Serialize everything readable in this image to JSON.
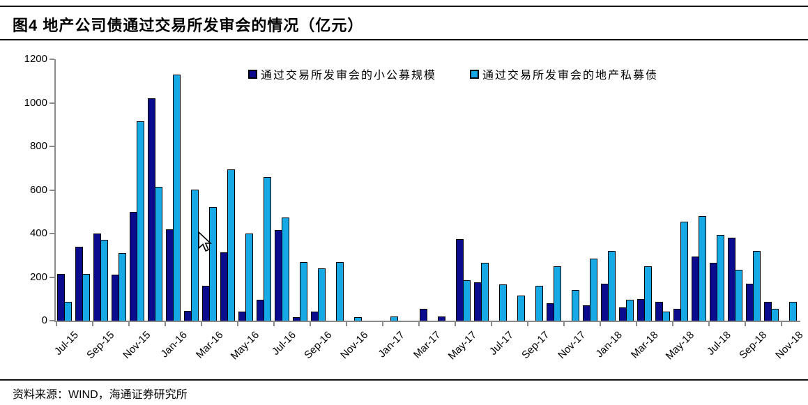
{
  "title": "图4  地产公司债通过交易所发审会的情况（亿元）",
  "source": "资料来源：WIND，海通证券研究所",
  "legend": {
    "public_offering": "通过交易所发审会的小公募规模",
    "private_placement": "通过交易所发审会的地产私募债"
  },
  "colors": {
    "series_dark": "#0b0b8d",
    "series_light": "#16a9e6",
    "axis": "#8a8a8a",
    "rule": "#111111"
  },
  "chart_data": {
    "type": "bar",
    "title": "图4 地产公司债通过交易所发审会的情况（亿元）",
    "xlabel": "",
    "ylabel": "",
    "ylim": [
      0,
      1200
    ],
    "y_ticks": [
      0,
      200,
      400,
      600,
      800,
      1000,
      1200
    ],
    "grid": false,
    "legend_position": "top-center",
    "categories": [
      "Jul-15",
      "Aug-15",
      "Sep-15",
      "Oct-15",
      "Nov-15",
      "Dec-15",
      "Jan-16",
      "Feb-16",
      "Mar-16",
      "Apr-16",
      "May-16",
      "Jun-16",
      "Jul-16",
      "Aug-16",
      "Sep-16",
      "Oct-16",
      "Nov-16",
      "Dec-16",
      "Jan-17",
      "Feb-17",
      "Mar-17",
      "Apr-17",
      "May-17",
      "Jun-17",
      "Jul-17",
      "Aug-17",
      "Sep-17",
      "Oct-17",
      "Nov-17",
      "Dec-17",
      "Jan-18",
      "Feb-18",
      "Mar-18",
      "Apr-18",
      "May-18",
      "Jun-18",
      "Jul-18",
      "Aug-18",
      "Sep-18",
      "Oct-18",
      "Nov-18"
    ],
    "x_tick_labels": [
      "Jul-15",
      "Sep-15",
      "Nov-15",
      "Jan-16",
      "Mar-16",
      "May-16",
      "Jul-16",
      "Sep-16",
      "Nov-16",
      "Jan-17",
      "Mar-17",
      "May-17",
      "Jul-17",
      "Sep-17",
      "Nov-17",
      "Jan-18",
      "Mar-18",
      "May-18",
      "Jul-18",
      "Sep-18",
      "Nov-18"
    ],
    "series": [
      {
        "name": "通过交易所发审会的小公募规模",
        "color": "#0b0b8d",
        "values": [
          215,
          340,
          400,
          210,
          500,
          1020,
          420,
          45,
          160,
          315,
          40,
          95,
          415,
          15,
          40,
          0,
          0,
          0,
          0,
          0,
          55,
          20,
          375,
          175,
          0,
          0,
          0,
          80,
          0,
          70,
          170,
          60,
          100,
          85,
          55,
          295,
          265,
          380,
          170,
          85,
          0
        ]
      },
      {
        "name": "通过交易所发审会的地产私募债",
        "color": "#16a9e6",
        "values": [
          85,
          215,
          370,
          310,
          915,
          615,
          1130,
          600,
          520,
          695,
          400,
          660,
          475,
          270,
          240,
          270,
          15,
          0,
          20,
          0,
          0,
          0,
          185,
          265,
          165,
          115,
          160,
          250,
          140,
          285,
          320,
          95,
          250,
          40,
          455,
          480,
          395,
          235,
          320,
          55,
          85
        ]
      }
    ]
  }
}
